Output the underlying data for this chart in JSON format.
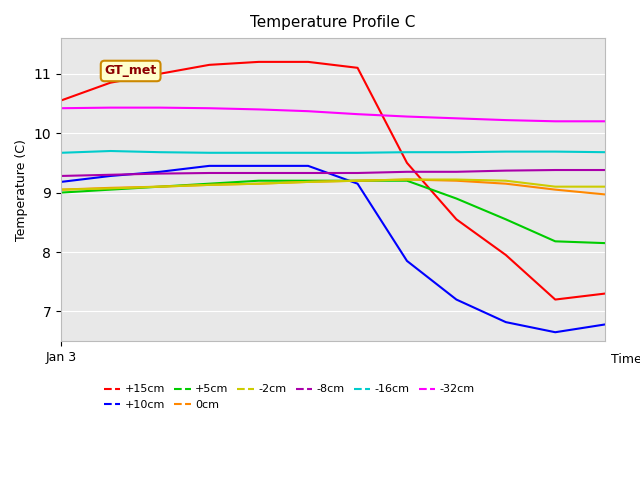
{
  "title": "Temperature Profile C",
  "xlabel": "Time",
  "ylabel": "Temperature (C)",
  "ylim": [
    6.5,
    11.6
  ],
  "annotation_text": "GT_met",
  "background_color": "#e8e8e8",
  "series": {
    "+15cm": {
      "color": "#ff0000",
      "x": [
        0,
        1,
        2,
        3,
        4,
        5,
        6,
        7,
        8,
        9,
        10,
        11
      ],
      "y": [
        10.55,
        10.85,
        11.0,
        11.15,
        11.2,
        11.2,
        11.1,
        9.5,
        8.55,
        7.95,
        7.2,
        7.3
      ]
    },
    "+10cm": {
      "color": "#0000ff",
      "x": [
        0,
        1,
        2,
        3,
        4,
        5,
        6,
        7,
        8,
        9,
        10,
        11
      ],
      "y": [
        9.18,
        9.28,
        9.35,
        9.45,
        9.45,
        9.45,
        9.15,
        7.85,
        7.2,
        6.82,
        6.65,
        6.78
      ]
    },
    "+5cm": {
      "color": "#00cc00",
      "x": [
        0,
        1,
        2,
        3,
        4,
        5,
        6,
        7,
        8,
        9,
        10,
        11
      ],
      "y": [
        9.0,
        9.05,
        9.1,
        9.15,
        9.2,
        9.2,
        9.2,
        9.2,
        8.9,
        8.55,
        8.18,
        8.15
      ]
    },
    "0cm": {
      "color": "#ff8800",
      "x": [
        0,
        1,
        2,
        3,
        4,
        5,
        6,
        7,
        8,
        9,
        10,
        11
      ],
      "y": [
        9.05,
        9.08,
        9.1,
        9.13,
        9.15,
        9.18,
        9.2,
        9.22,
        9.2,
        9.15,
        9.05,
        8.97
      ]
    },
    "-2cm": {
      "color": "#cccc00",
      "x": [
        0,
        1,
        2,
        3,
        4,
        5,
        6,
        7,
        8,
        9,
        10,
        11
      ],
      "y": [
        9.05,
        9.07,
        9.1,
        9.13,
        9.15,
        9.18,
        9.2,
        9.22,
        9.22,
        9.2,
        9.1,
        9.1
      ]
    },
    "-8cm": {
      "color": "#aa00aa",
      "x": [
        0,
        1,
        2,
        3,
        4,
        5,
        6,
        7,
        8,
        9,
        10,
        11
      ],
      "y": [
        9.28,
        9.3,
        9.32,
        9.33,
        9.33,
        9.33,
        9.33,
        9.35,
        9.35,
        9.37,
        9.38,
        9.38
      ]
    },
    "-16cm": {
      "color": "#00cccc",
      "x": [
        0,
        1,
        2,
        3,
        4,
        5,
        6,
        7,
        8,
        9,
        10,
        11
      ],
      "y": [
        9.67,
        9.7,
        9.68,
        9.67,
        9.67,
        9.67,
        9.67,
        9.68,
        9.68,
        9.69,
        9.69,
        9.68
      ]
    },
    "-32cm": {
      "color": "#ff00ff",
      "x": [
        0,
        1,
        2,
        3,
        4,
        5,
        6,
        7,
        8,
        9,
        10,
        11
      ],
      "y": [
        10.42,
        10.43,
        10.43,
        10.42,
        10.4,
        10.37,
        10.32,
        10.28,
        10.25,
        10.22,
        10.2,
        10.2
      ]
    }
  },
  "legend_order": [
    "+15cm",
    "+10cm",
    "+5cm",
    "0cm",
    "-2cm",
    "-8cm",
    "-16cm",
    "-32cm"
  ]
}
